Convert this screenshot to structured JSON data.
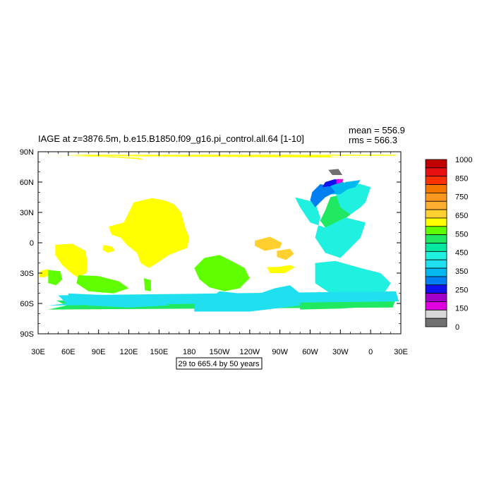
{
  "chart_data": {
    "type": "heatmap",
    "title": "IAGE at z=3876.5m, b.e15.B1850.f09_g16.pi_control.all.64 [1-10]",
    "stats": {
      "mean": "mean = 556.9",
      "rms": "rms = 566.3"
    },
    "note": "29 to 665.4 by 50 years",
    "x_ticks": [
      "30E",
      "60E",
      "90E",
      "120E",
      "150E",
      "180",
      "150W",
      "120W",
      "90W",
      "60W",
      "30W",
      "0",
      "30E"
    ],
    "y_ticks": [
      "90N",
      "60N",
      "30N",
      "0",
      "30S",
      "60S",
      "90S"
    ],
    "colorbar": {
      "labels": [
        "1000",
        "850",
        "750",
        "650",
        "550",
        "450",
        "350",
        "250",
        "150",
        "0"
      ],
      "colors": [
        "#c00000",
        "#e81010",
        "#ff3000",
        "#f47800",
        "#ff9820",
        "#ffb030",
        "#ffd030",
        "#ffff00",
        "#60ff00",
        "#20e860",
        "#00e8a0",
        "#20f0e0",
        "#20e0f0",
        "#00b8f0",
        "#0080f0",
        "#1010f0",
        "#a000c8",
        "#e000e0",
        "#d8d8d8",
        "#707070"
      ]
    },
    "regions": [
      {
        "value": 610,
        "color": "#ffff00",
        "poly": [
          [
            100,
            16
          ],
          [
            115,
            20
          ],
          [
            125,
            40
          ],
          [
            143,
            44
          ],
          [
            155,
            42
          ],
          [
            165,
            38
          ],
          [
            172,
            30
          ],
          [
            176,
            15
          ],
          [
            180,
            5
          ],
          [
            178,
            -5
          ],
          [
            170,
            -8
          ],
          [
            160,
            -12
          ],
          [
            148,
            -20
          ],
          [
            140,
            -25
          ],
          [
            132,
            -20
          ],
          [
            128,
            -10
          ],
          [
            118,
            -2
          ],
          [
            112,
            5
          ],
          [
            103,
            8
          ]
        ]
      },
      {
        "value": 610,
        "color": "#ffff00",
        "poly": [
          [
            47,
            -2
          ],
          [
            64,
            -1
          ],
          [
            77,
            -8
          ],
          [
            79,
            -20
          ],
          [
            78,
            -30
          ],
          [
            69,
            -34
          ],
          [
            63,
            -30
          ],
          [
            54,
            -22
          ],
          [
            47,
            -12
          ]
        ]
      },
      {
        "value": 610,
        "color": "#ffff00",
        "poly": [
          [
            32,
            -28
          ],
          [
            40,
            -26
          ],
          [
            44,
            -30
          ],
          [
            37,
            -34
          ],
          [
            31,
            -34
          ]
        ]
      },
      {
        "value": 610,
        "color": "#ffff00",
        "poly": [
          [
            95,
            -2
          ],
          [
            104,
            -4
          ],
          [
            106,
            -8
          ],
          [
            99,
            -10
          ],
          [
            94,
            -7
          ]
        ]
      },
      {
        "value": 610,
        "color": "#ffff00",
        "poly": [
          [
            25,
            86
          ],
          [
            55,
            86
          ],
          [
            95,
            85
          ],
          [
            125,
            83
          ],
          [
            135,
            82
          ],
          [
            130,
            84
          ],
          [
            60,
            87
          ],
          [
            25,
            87
          ]
        ]
      },
      {
        "value": 610,
        "color": "#ffff00",
        "poly": [
          [
            -40,
            86
          ],
          [
            -10,
            86
          ],
          [
            30,
            86
          ],
          [
            22,
            84
          ],
          [
            -20,
            84
          ],
          [
            -40,
            85
          ]
        ]
      },
      {
        "value": 610,
        "color": "#ffff00",
        "poly": [
          [
            -103,
            -24
          ],
          [
            -92,
            -24
          ],
          [
            -80,
            -22
          ],
          [
            -75,
            -24
          ],
          [
            -85,
            -30
          ],
          [
            -100,
            -30
          ]
        ]
      },
      {
        "value": 690,
        "color": "#ffd030",
        "poly": [
          [
            -115,
            2
          ],
          [
            -100,
            6
          ],
          [
            -88,
            0
          ],
          [
            -90,
            -5
          ],
          [
            -105,
            -8
          ],
          [
            -115,
            -3
          ]
        ]
      },
      {
        "value": 690,
        "color": "#ffd030",
        "poly": [
          [
            -93,
            -8
          ],
          [
            -80,
            -6
          ],
          [
            -76,
            -11
          ],
          [
            -84,
            -17
          ],
          [
            -93,
            -14
          ]
        ]
      },
      {
        "value": 560,
        "color": "#60ff00",
        "poly": [
          [
            -165,
            -15
          ],
          [
            -150,
            -12
          ],
          [
            -138,
            -18
          ],
          [
            -125,
            -25
          ],
          [
            -120,
            -35
          ],
          [
            -130,
            -45
          ],
          [
            -145,
            -48
          ],
          [
            -160,
            -44
          ],
          [
            -170,
            -36
          ],
          [
            -175,
            -25
          ]
        ]
      },
      {
        "value": 560,
        "color": "#60ff00",
        "poly": [
          [
            70,
            -32
          ],
          [
            90,
            -33
          ],
          [
            110,
            -38
          ],
          [
            120,
            -45
          ],
          [
            105,
            -50
          ],
          [
            80,
            -48
          ],
          [
            68,
            -40
          ]
        ]
      },
      {
        "value": 560,
        "color": "#60ff00",
        "poly": [
          [
            135,
            -35
          ],
          [
            142,
            -37
          ],
          [
            142,
            -48
          ],
          [
            136,
            -47
          ]
        ]
      },
      {
        "value": 560,
        "color": "#60ff00",
        "poly": [
          [
            40,
            -27
          ],
          [
            52,
            -28
          ],
          [
            54,
            -36
          ],
          [
            48,
            -42
          ],
          [
            40,
            -40
          ]
        ]
      },
      {
        "value": 500,
        "color": "#20e860",
        "poly": [
          [
            -45,
            15
          ],
          [
            -30,
            20
          ],
          [
            -20,
            28
          ],
          [
            -15,
            35
          ],
          [
            -18,
            45
          ],
          [
            -28,
            48
          ],
          [
            -40,
            45
          ],
          [
            -45,
            32
          ],
          [
            -50,
            22
          ]
        ]
      },
      {
        "value": 500,
        "color": "#20e860",
        "poly": [
          [
            -70,
            -60
          ],
          [
            -40,
            -56
          ],
          [
            0,
            -52
          ],
          [
            25,
            -55
          ],
          [
            20,
            -62
          ],
          [
            -30,
            -65
          ],
          [
            -70,
            -66
          ]
        ]
      },
      {
        "value": 500,
        "color": "#20e860",
        "poly": [
          [
            25,
            -55
          ],
          [
            48,
            -57
          ],
          [
            58,
            -62
          ],
          [
            40,
            -66
          ],
          [
            22,
            -64
          ]
        ]
      },
      {
        "value": 420,
        "color": "#20f0e0",
        "poly": [
          [
            -75,
            45
          ],
          [
            -55,
            40
          ],
          [
            -50,
            25
          ],
          [
            -55,
            5
          ],
          [
            -45,
            -10
          ],
          [
            -30,
            -15
          ],
          [
            -20,
            -5
          ],
          [
            -10,
            5
          ],
          [
            -5,
            20
          ],
          [
            -25,
            25
          ],
          [
            -45,
            15
          ],
          [
            -60,
            20
          ],
          [
            -70,
            35
          ]
        ]
      },
      {
        "value": 420,
        "color": "#20f0e0",
        "poly": [
          [
            -55,
            -20
          ],
          [
            -35,
            -18
          ],
          [
            -10,
            -25
          ],
          [
            10,
            -30
          ],
          [
            20,
            -40
          ],
          [
            10,
            -55
          ],
          [
            -20,
            -55
          ],
          [
            -40,
            -50
          ],
          [
            -55,
            -40
          ]
        ]
      },
      {
        "value": 420,
        "color": "#20f0e0",
        "poly": [
          [
            -25,
            60
          ],
          [
            -10,
            58
          ],
          [
            0,
            55
          ],
          [
            -5,
            40
          ],
          [
            -10,
            35
          ],
          [
            -20,
            28
          ],
          [
            -30,
            35
          ],
          [
            -35,
            50
          ]
        ]
      },
      {
        "value": 380,
        "color": "#20e0f0",
        "poly": [
          [
            -150,
            -48
          ],
          [
            -130,
            -50
          ],
          [
            -110,
            -50
          ],
          [
            -95,
            -45
          ],
          [
            -80,
            -42
          ],
          [
            -70,
            -50
          ],
          [
            -70,
            -62
          ],
          [
            -120,
            -68
          ],
          [
            -175,
            -68
          ],
          [
            -175,
            -60
          ],
          [
            -160,
            -55
          ]
        ]
      },
      {
        "value": 380,
        "color": "#20e0f0",
        "poly": [
          [
            60,
            -50
          ],
          [
            100,
            -52
          ],
          [
            130,
            -55
          ],
          [
            150,
            -57
          ],
          [
            160,
            -62
          ],
          [
            120,
            -64
          ],
          [
            80,
            -62
          ],
          [
            60,
            -58
          ]
        ]
      },
      {
        "value": 380,
        "color": "#20e0f0",
        "poly": [
          [
            25,
            -48
          ],
          [
            50,
            -52
          ],
          [
            58,
            -60
          ],
          [
            40,
            -62
          ],
          [
            28,
            -58
          ]
        ]
      },
      {
        "value": 330,
        "color": "#00b8f0",
        "poly": [
          [
            -50,
            48
          ],
          [
            -30,
            48
          ],
          [
            -20,
            55
          ],
          [
            -30,
            62
          ],
          [
            -45,
            58
          ],
          [
            -52,
            52
          ]
        ]
      },
      {
        "value": 330,
        "color": "#00b8f0",
        "poly": [
          [
            -35,
            50
          ],
          [
            -15,
            55
          ],
          [
            -10,
            62
          ],
          [
            -25,
            60
          ]
        ]
      },
      {
        "value": 260,
        "color": "#0080f0",
        "poly": [
          [
            -55,
            35
          ],
          [
            -45,
            45
          ],
          [
            -35,
            50
          ],
          [
            -40,
            56
          ],
          [
            -50,
            58
          ],
          [
            -58,
            50
          ],
          [
            -60,
            42
          ]
        ]
      },
      {
        "value": 240,
        "color": "#1010f0",
        "poly": [
          [
            -48,
            55
          ],
          [
            -40,
            56
          ],
          [
            -30,
            60
          ],
          [
            -35,
            63
          ],
          [
            -45,
            60
          ]
        ]
      },
      {
        "value": 120,
        "color": "#e000e0",
        "poly": [
          [
            -34,
            58
          ],
          [
            -28,
            60
          ],
          [
            -27,
            63
          ],
          [
            -34,
            63
          ]
        ]
      },
      {
        "value": 20,
        "color": "#707070",
        "poly": [
          [
            -42,
            72
          ],
          [
            -32,
            73
          ],
          [
            -28,
            67
          ],
          [
            -38,
            67
          ]
        ]
      }
    ]
  }
}
